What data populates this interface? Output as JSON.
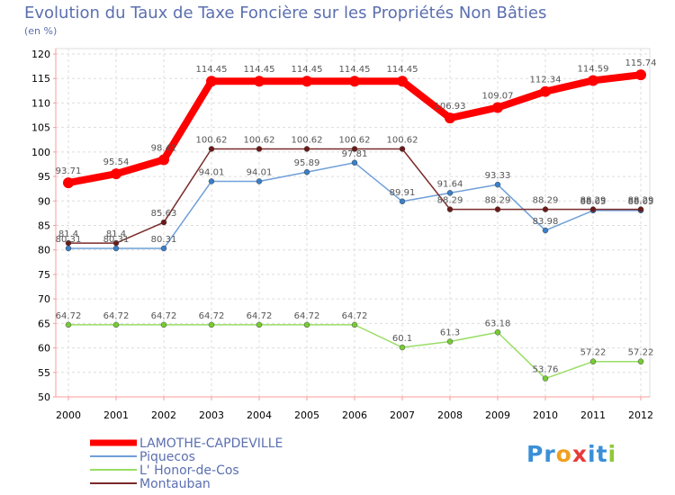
{
  "chart_data": {
    "type": "line",
    "title": "Evolution du Taux de Taxe Foncière sur les Propriétés Non Bâties",
    "subtitle": "(en %)",
    "x": [
      "2000",
      "2001",
      "2002",
      "2003",
      "2004",
      "2005",
      "2006",
      "2007",
      "2008",
      "2009",
      "2010",
      "2011",
      "2012"
    ],
    "yticks": [
      50,
      55,
      60,
      65,
      70,
      75,
      80,
      85,
      90,
      95,
      100,
      105,
      110,
      115,
      120
    ],
    "ylim": [
      50,
      120
    ],
    "grid": true,
    "legend_position": "bottom-left",
    "series": [
      {
        "name": "LAMOTHE-CAPDEVILLE",
        "color": "#ff0000",
        "values": [
          93.71,
          95.54,
          98.41,
          114.45,
          114.45,
          114.45,
          114.45,
          114.45,
          106.93,
          109.07,
          112.34,
          114.59,
          115.74
        ],
        "labels": [
          "93.71",
          "95.54",
          "98.41",
          "114.45",
          "114.45",
          "114.45",
          "114.45",
          "114.45",
          "106.93",
          "109.07",
          "112.34",
          "114.59",
          "115.74"
        ]
      },
      {
        "name": "Piquecos",
        "color": "#6f9fd8",
        "values": [
          80.31,
          80.31,
          80.31,
          94.01,
          94.01,
          95.89,
          97.81,
          89.91,
          91.64,
          93.33,
          83.98,
          88.05,
          88.05
        ],
        "labels": [
          "80.31",
          "80.31",
          "80.31",
          "94.01",
          "94.01",
          "95.89",
          "97.81",
          "89.91",
          "91.64",
          "93.33",
          "83.98",
          "88.05",
          "88.05"
        ]
      },
      {
        "name": "L' Honor-de-Cos",
        "color": "#99dd66",
        "values": [
          64.72,
          64.72,
          64.72,
          64.72,
          64.72,
          64.72,
          64.72,
          60.1,
          61.3,
          63.18,
          53.76,
          57.22,
          57.22
        ],
        "labels": [
          "64.72",
          "64.72",
          "64.72",
          "64.72",
          "64.72",
          "64.72",
          "64.72",
          "60.1",
          "61.3",
          "63.18",
          "53.76",
          "57.22",
          "57.22"
        ]
      },
      {
        "name": "Montauban",
        "color": "#7a2a2a",
        "values": [
          81.4,
          81.4,
          85.63,
          100.62,
          100.62,
          100.62,
          100.62,
          100.62,
          88.29,
          88.29,
          88.29,
          88.29,
          88.29
        ],
        "labels": [
          "81.4",
          "81.4",
          "85.63",
          "100.62",
          "100.62",
          "100.62",
          "100.62",
          "100.62",
          "88.29",
          "88.29",
          "88.29",
          "88.29",
          "88.29"
        ]
      }
    ]
  },
  "logo": {
    "letters": [
      "P",
      "r",
      "o",
      "x",
      "i",
      "t",
      "i"
    ],
    "colors": [
      "#3a8fd8",
      "#3a8fd8",
      "#f0a020",
      "#e83a3a",
      "#3a8fd8",
      "#3a8fd8",
      "#8fc83a"
    ]
  }
}
